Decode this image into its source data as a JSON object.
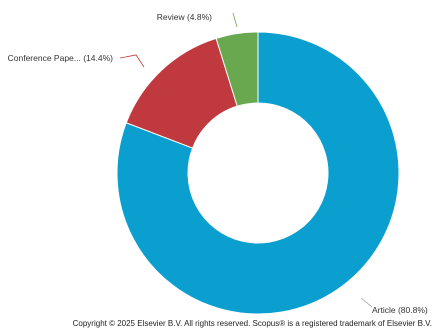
{
  "chart_data": {
    "type": "pie",
    "donut": true,
    "slices": [
      {
        "label": "Article",
        "label_display": "Article (80.8%)",
        "value": 80.8,
        "color": "#0b9fd0"
      },
      {
        "label": "Conference Paper",
        "label_display": "Conference Pape... (14.4%)",
        "value": 14.4,
        "color": "#c0393f"
      },
      {
        "label": "Review",
        "label_display": "Review (4.8%)",
        "value": 4.8,
        "color": "#69a84f"
      }
    ],
    "leader_color": "#a0a0a0"
  },
  "footer": {
    "copyright": "Copyright © 2025 Elsevier B.V. All rights reserved. Scopus® is a registered trademark of Elsevier B.V."
  }
}
